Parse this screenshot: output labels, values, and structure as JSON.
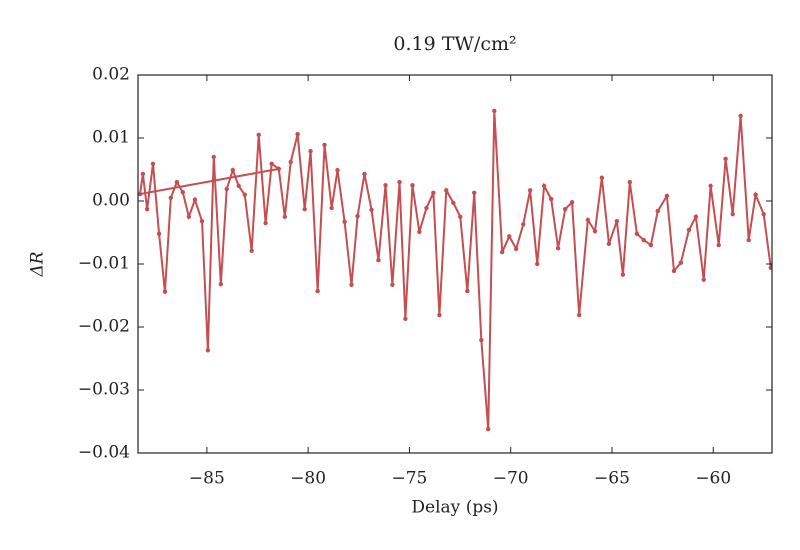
{
  "chart_data": {
    "type": "line",
    "title": "0.19 TW/cm²",
    "xlabel": "Delay (ps)",
    "ylabel": "ΔR",
    "color": "#c44e52",
    "x": [
      -81.45,
      -88.3,
      -88.16,
      -87.95,
      -87.66,
      -87.36,
      -87.07,
      -86.78,
      -86.48,
      -86.19,
      -85.89,
      -85.59,
      -85.24,
      -84.95,
      -84.66,
      -84.31,
      -84.02,
      -83.72,
      -83.43,
      -83.13,
      -82.79,
      -82.44,
      -82.1,
      -81.8,
      -81.45,
      -81.15,
      -80.86,
      -80.52,
      -80.17,
      -79.88,
      -79.53,
      -79.19,
      -78.84,
      -78.55,
      -78.2,
      -77.86,
      -77.56,
      -77.22,
      -76.87,
      -76.53,
      -76.18,
      -75.84,
      -75.49,
      -75.2,
      -74.85,
      -74.51,
      -74.16,
      -73.82,
      -73.52,
      -73.18,
      -72.83,
      -72.49,
      -72.14,
      -71.8,
      -71.45,
      -71.11,
      -70.81,
      -70.42,
      -70.07,
      -69.73,
      -69.38,
      -69.04,
      -68.69,
      -68.35,
      -68.0,
      -67.66,
      -67.31,
      -66.97,
      -66.62,
      -66.19,
      -65.84,
      -65.5,
      -65.15,
      -64.76,
      -64.46,
      -64.12,
      -63.77,
      -63.43,
      -63.08,
      -62.74,
      -62.29,
      -61.94,
      -61.6,
      -61.2,
      -60.86,
      -60.47,
      -60.13,
      -59.73,
      -59.39,
      -59.04,
      -58.65,
      -58.25,
      -57.91,
      -57.51,
      -57.16
    ],
    "values": [
      0.0051,
      0.0011,
      0.0043,
      -0.0013,
      0.0059,
      -0.0052,
      -0.0144,
      0.0005,
      0.003,
      0.0014,
      -0.0025,
      0.0002,
      -0.0032,
      -0.0237,
      0.007,
      -0.0132,
      0.0019,
      0.0049,
      0.0024,
      0.001,
      -0.0079,
      0.0105,
      -0.0035,
      0.0059,
      0.0051,
      -0.0025,
      0.0062,
      0.0106,
      -0.0013,
      0.0079,
      -0.0143,
      0.0089,
      -0.0011,
      0.0049,
      -0.0033,
      -0.0133,
      -0.0024,
      0.0043,
      -0.0014,
      -0.0094,
      0.0025,
      -0.0133,
      0.003,
      -0.0187,
      0.0025,
      -0.0049,
      -0.0011,
      0.0013,
      -0.0181,
      0.0017,
      -0.0003,
      -0.0025,
      -0.0143,
      0.0013,
      -0.0221,
      -0.0362,
      0.0143,
      -0.0081,
      -0.0056,
      -0.0076,
      -0.0037,
      0.0017,
      -0.01,
      0.0024,
      0.0003,
      -0.0075,
      -0.0013,
      -0.0002,
      -0.0181,
      -0.003,
      -0.0048,
      0.0037,
      -0.0068,
      -0.0032,
      -0.0117,
      0.003,
      -0.0052,
      -0.0062,
      -0.007,
      -0.0016,
      0.0008,
      -0.0111,
      -0.0098,
      -0.0046,
      -0.0025,
      -0.0125,
      0.0024,
      -0.007,
      0.0067,
      -0.0021,
      0.0135,
      -0.0062,
      0.001,
      -0.0021,
      -0.0106
    ],
    "xlim": [
      -88.4,
      -57.1
    ],
    "ylim": [
      -0.04,
      0.02
    ],
    "xticks": [
      {
        "value": -85,
        "label": "−85"
      },
      {
        "value": -80,
        "label": "−80"
      },
      {
        "value": -75,
        "label": "−75"
      },
      {
        "value": -70,
        "label": "−70"
      },
      {
        "value": -65,
        "label": "−65"
      },
      {
        "value": -60,
        "label": "−60"
      }
    ],
    "yticks": [
      {
        "value": -0.04,
        "label": "−0.04"
      },
      {
        "value": -0.03,
        "label": "−0.03"
      },
      {
        "value": -0.02,
        "label": "−0.02"
      },
      {
        "value": -0.01,
        "label": "−0.01"
      },
      {
        "value": 0,
        "label": "0.00"
      },
      0.01,
      0.02
    ]
  }
}
